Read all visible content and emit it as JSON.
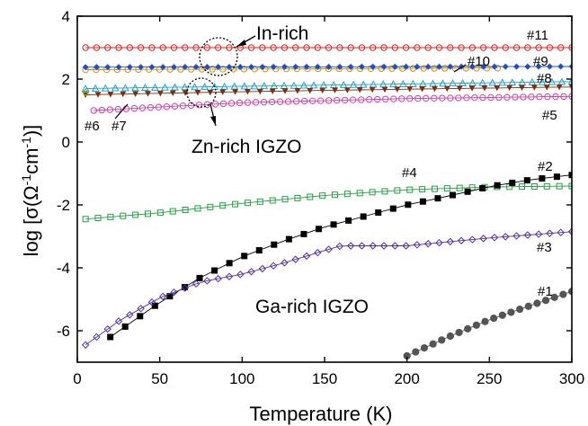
{
  "chart_data": {
    "type": "scatter",
    "xlabel": "Temperature (K)",
    "ylabel": "log [σ(Ω-1cm-1)]",
    "xlim": [
      0,
      300
    ],
    "ylim": [
      -7,
      4
    ],
    "xticks": [
      0,
      50,
      100,
      150,
      200,
      250,
      300
    ],
    "yticks": [
      -6,
      -4,
      -2,
      0,
      2,
      4
    ],
    "grid": false,
    "series": [
      {
        "name": "#11",
        "color": "#e02020",
        "marker": "circle-open",
        "x_start": 5,
        "x_end": 300,
        "count": 45,
        "values": [
          [
            5,
            3.0
          ],
          [
            300,
            3.0
          ]
        ]
      },
      {
        "name": "#10",
        "color": "#d09010",
        "marker": "circle-open",
        "x_start": 5,
        "x_end": 255,
        "count": 40,
        "values": [
          [
            5,
            2.3
          ],
          [
            255,
            2.35
          ]
        ]
      },
      {
        "name": "#9",
        "color": "#2050c0",
        "marker": "diamond-filled",
        "x_start": 5,
        "x_end": 300,
        "count": 45,
        "values": [
          [
            5,
            2.38
          ],
          [
            300,
            2.4
          ]
        ]
      },
      {
        "name": "#8",
        "color": "#20a0d0",
        "marker": "triangle-open",
        "x_start": 5,
        "x_end": 300,
        "count": 50,
        "values": [
          [
            5,
            1.7
          ],
          [
            300,
            1.92
          ]
        ]
      },
      {
        "name": "#7",
        "color": "#7a3010",
        "marker": "triangle-down-filled",
        "x_start": 5,
        "x_end": 300,
        "count": 40,
        "values": [
          [
            5,
            1.5
          ],
          [
            100,
            1.6
          ],
          [
            200,
            1.68
          ],
          [
            300,
            1.75
          ]
        ]
      },
      {
        "name": "#6",
        "color": "#a0a020",
        "marker": "diamond-open",
        "x_start": 5,
        "x_end": 5,
        "count": 1,
        "values": [
          [
            5,
            1.58
          ]
        ]
      },
      {
        "name": "#5",
        "color": "#d040a0",
        "marker": "x-circle",
        "x_start": 10,
        "x_end": 300,
        "count": 60,
        "values": [
          [
            10,
            1.0
          ],
          [
            100,
            1.25
          ],
          [
            200,
            1.38
          ],
          [
            300,
            1.45
          ]
        ]
      },
      {
        "name": "#4",
        "color": "#20a040",
        "marker": "square-open",
        "x_start": 5,
        "x_end": 300,
        "count": 40,
        "values": [
          [
            5,
            -2.45
          ],
          [
            50,
            -2.25
          ],
          [
            100,
            -1.95
          ],
          [
            150,
            -1.7
          ],
          [
            200,
            -1.52
          ],
          [
            250,
            -1.43
          ],
          [
            300,
            -1.4
          ]
        ]
      },
      {
        "name": "#2",
        "color": "#000000",
        "marker": "square-filled",
        "x_start": 20,
        "x_end": 300,
        "count": 32,
        "values": [
          [
            20,
            -6.2
          ],
          [
            50,
            -5.1
          ],
          [
            75,
            -4.3
          ],
          [
            100,
            -3.65
          ],
          [
            125,
            -3.15
          ],
          [
            150,
            -2.7
          ],
          [
            175,
            -2.35
          ],
          [
            200,
            -2.0
          ],
          [
            225,
            -1.72
          ],
          [
            250,
            -1.42
          ],
          [
            275,
            -1.2
          ],
          [
            300,
            -1.05
          ]
        ]
      },
      {
        "name": "#3",
        "color": "#5030a0",
        "marker": "diamond-open",
        "x_start": 5,
        "x_end": 300,
        "count": 45,
        "values": [
          [
            5,
            -6.45
          ],
          [
            25,
            -5.7
          ],
          [
            50,
            -4.95
          ],
          [
            75,
            -4.45
          ],
          [
            100,
            -4.2
          ],
          [
            125,
            -3.85
          ],
          [
            150,
            -3.45
          ],
          [
            160,
            -3.3
          ],
          [
            200,
            -3.3
          ],
          [
            250,
            -3.05
          ],
          [
            300,
            -2.85
          ]
        ]
      },
      {
        "name": "#1",
        "color": "#555555",
        "marker": "circle-filled",
        "x_start": 200,
        "x_end": 300,
        "count": 20,
        "values": [
          [
            200,
            -6.8
          ],
          [
            225,
            -6.2
          ],
          [
            250,
            -5.65
          ],
          [
            275,
            -5.2
          ],
          [
            300,
            -4.75
          ]
        ]
      }
    ],
    "annotations": {
      "in_rich": "In-rich",
      "zn_rich": "Zn-rich IGZO",
      "ga_rich": "Ga-rich IGZO"
    }
  }
}
